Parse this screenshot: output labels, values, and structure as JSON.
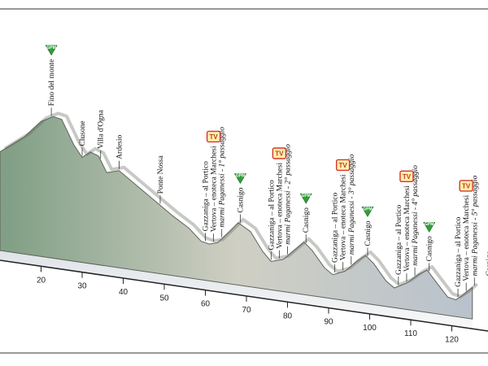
{
  "chart_data": {
    "type": "area",
    "title": "",
    "xlabel": "",
    "ylabel": "",
    "xlim": [
      10,
      125
    ],
    "x_ticks": [
      20,
      30,
      40,
      50,
      60,
      70,
      80,
      90,
      100,
      110,
      120
    ],
    "grid": false,
    "colors": {
      "profile_start": "#7f9e84",
      "profile_mid": "#cfcfc3",
      "profile_end": "#b9c2cd",
      "ridge": "#5e6359",
      "base": "#eef0f2",
      "axis": "#222222",
      "gpm_badge": "#2f9e3a",
      "tv_badge_border": "#d9342b",
      "tv_badge_fill": "#fff1a8"
    },
    "profile": [
      {
        "x": 10,
        "elev": 0.52
      },
      {
        "x": 16,
        "elev": 0.66
      },
      {
        "x": 20,
        "elev": 0.79
      },
      {
        "x": 23,
        "elev": 0.84
      },
      {
        "x": 25,
        "elev": 0.83
      },
      {
        "x": 28,
        "elev": 0.66
      },
      {
        "x": 30,
        "elev": 0.58
      },
      {
        "x": 32,
        "elev": 0.63
      },
      {
        "x": 34,
        "elev": 0.61
      },
      {
        "x": 36,
        "elev": 0.5
      },
      {
        "x": 39,
        "elev": 0.53
      },
      {
        "x": 44,
        "elev": 0.43
      },
      {
        "x": 48,
        "elev": 0.35
      },
      {
        "x": 52,
        "elev": 0.27
      },
      {
        "x": 56,
        "elev": 0.2
      },
      {
        "x": 59,
        "elev": 0.12
      },
      {
        "x": 61,
        "elev": 0.11
      },
      {
        "x": 63,
        "elev": 0.13
      },
      {
        "x": 66,
        "elev": 0.23
      },
      {
        "x": 68,
        "elev": 0.3
      },
      {
        "x": 71,
        "elev": 0.25
      },
      {
        "x": 74,
        "elev": 0.12
      },
      {
        "x": 76,
        "elev": 0.06
      },
      {
        "x": 79,
        "elev": 0.09
      },
      {
        "x": 82,
        "elev": 0.18
      },
      {
        "x": 84,
        "elev": 0.24
      },
      {
        "x": 86,
        "elev": 0.19
      },
      {
        "x": 89,
        "elev": 0.08
      },
      {
        "x": 91,
        "elev": 0.04
      },
      {
        "x": 94,
        "elev": 0.08
      },
      {
        "x": 97,
        "elev": 0.17
      },
      {
        "x": 99,
        "elev": 0.22
      },
      {
        "x": 101,
        "elev": 0.17
      },
      {
        "x": 104,
        "elev": 0.06
      },
      {
        "x": 106,
        "elev": 0.02
      },
      {
        "x": 109,
        "elev": 0.07
      },
      {
        "x": 112,
        "elev": 0.15
      },
      {
        "x": 114,
        "elev": 0.19
      },
      {
        "x": 116,
        "elev": 0.12
      },
      {
        "x": 119,
        "elev": 0.02
      },
      {
        "x": 121,
        "elev": 0.01
      },
      {
        "x": 123,
        "elev": 0.06
      },
      {
        "x": 125,
        "elev": 0.12
      }
    ],
    "annotations": [
      {
        "x": 22.5,
        "label": "Fino del monte",
        "badge": "GPM",
        "italic": false
      },
      {
        "x": 30,
        "label": "Clusone",
        "badge": "",
        "italic": false
      },
      {
        "x": 34.5,
        "label": "Villa d'Ogna",
        "badge": "",
        "italic": false
      },
      {
        "x": 39,
        "label": "Ardesio",
        "badge": "",
        "italic": false
      },
      {
        "x": 49,
        "label": "Ponte Nossa",
        "badge": "",
        "italic": false
      },
      {
        "x": 60,
        "label": "Gazzaniga – al Portico",
        "badge": "",
        "italic": false
      },
      {
        "x": 62,
        "label": "Vertova – enoteca Marchesi",
        "badge": "TV",
        "italic": false
      },
      {
        "x": 64,
        "label": "marmi Paganessi - 1° passaggio",
        "badge": "",
        "italic": true
      },
      {
        "x": 68.5,
        "label": "Casnigo",
        "badge": "GPM",
        "italic": false
      },
      {
        "x": 76,
        "label": "Gazzaniga – al Portico",
        "badge": "",
        "italic": false
      },
      {
        "x": 78,
        "label": "Vertova – enoteca Marchesi",
        "badge": "TV",
        "italic": false
      },
      {
        "x": 80,
        "label": "marmi Paganessi - 2° passaggio",
        "badge": "",
        "italic": true
      },
      {
        "x": 84.5,
        "label": "Casnigo",
        "badge": "GPM",
        "italic": false
      },
      {
        "x": 91.5,
        "label": "Gazzaniga – al Portico",
        "badge": "",
        "italic": false
      },
      {
        "x": 93.5,
        "label": "Vertova – enoteca Marchesi",
        "badge": "TV",
        "italic": false
      },
      {
        "x": 95.5,
        "label": "marmi Paganessi - 3° passaggio",
        "badge": "",
        "italic": true
      },
      {
        "x": 99.5,
        "label": "Casnigo",
        "badge": "GPM",
        "italic": false
      },
      {
        "x": 107,
        "label": "Gazzaniga – al Portico",
        "badge": "",
        "italic": false
      },
      {
        "x": 109,
        "label": "Vertova – enoteca Marchesi",
        "badge": "TV",
        "italic": false
      },
      {
        "x": 111,
        "label": "marmi Paganessi - 4° passaggio",
        "badge": "",
        "italic": true
      },
      {
        "x": 114.5,
        "label": "Casnigo",
        "badge": "GPM",
        "italic": false
      },
      {
        "x": 121.5,
        "label": "Gazzaniga – al Portico",
        "badge": "",
        "italic": false
      },
      {
        "x": 123.5,
        "label": "Vertova – enoteca Marchesi",
        "badge": "TV",
        "italic": false
      },
      {
        "x": 125.5,
        "label": "marmi Paganessi - 5° passaggio",
        "badge": "",
        "italic": true
      },
      {
        "x": 129,
        "label": "Casnigo",
        "badge": "",
        "italic": false
      }
    ]
  }
}
